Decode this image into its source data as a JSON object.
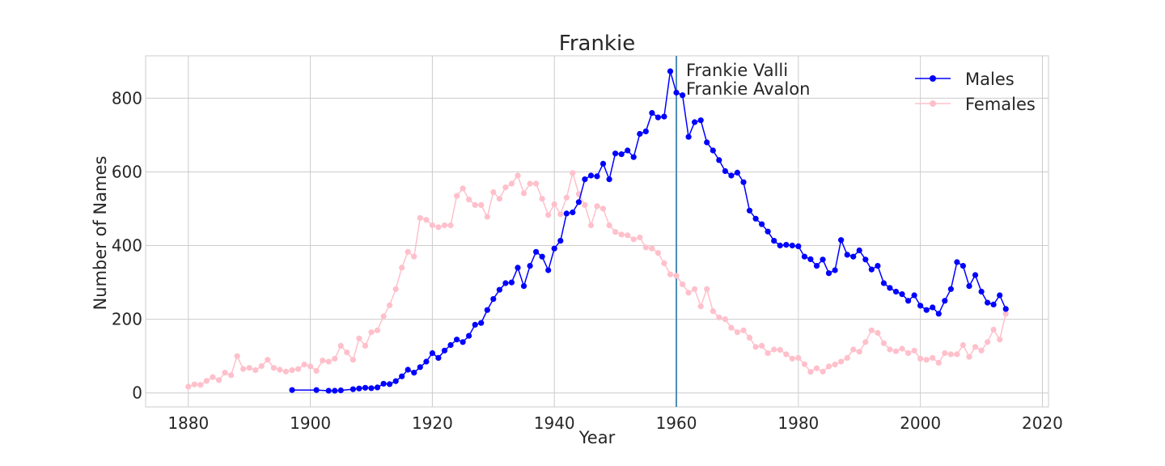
{
  "chart_data": {
    "type": "line",
    "title": "Frankie",
    "xlabel": "Year",
    "ylabel": "Number of Names",
    "xlim": [
      1873,
      2021
    ],
    "ylim": [
      -38,
      915
    ],
    "x_ticks": [
      1880,
      1900,
      1920,
      1940,
      1960,
      1980,
      2000,
      2020
    ],
    "y_ticks": [
      0,
      200,
      400,
      600,
      800
    ],
    "grid": true,
    "legend_position": "top-right",
    "vline": {
      "x": 1960,
      "color": "#4c8db8"
    },
    "annotations": [
      "Frankie Valli",
      "Frankie Avalon"
    ],
    "series": [
      {
        "name": "Males",
        "color": "#0000ff",
        "points": [
          [
            1897,
            8
          ],
          [
            1901,
            8
          ],
          [
            1903,
            6
          ],
          [
            1904,
            6
          ],
          [
            1905,
            7
          ],
          [
            1907,
            10
          ],
          [
            1908,
            12
          ],
          [
            1909,
            14
          ],
          [
            1910,
            13
          ],
          [
            1911,
            15
          ],
          [
            1912,
            25
          ],
          [
            1913,
            24
          ],
          [
            1914,
            32
          ],
          [
            1915,
            45
          ],
          [
            1916,
            63
          ],
          [
            1917,
            55
          ],
          [
            1918,
            70
          ],
          [
            1919,
            85
          ],
          [
            1920,
            108
          ],
          [
            1921,
            95
          ],
          [
            1922,
            115
          ],
          [
            1923,
            130
          ],
          [
            1924,
            145
          ],
          [
            1925,
            138
          ],
          [
            1926,
            155
          ],
          [
            1927,
            185
          ],
          [
            1928,
            190
          ],
          [
            1929,
            225
          ],
          [
            1930,
            255
          ],
          [
            1931,
            280
          ],
          [
            1932,
            298
          ],
          [
            1933,
            300
          ],
          [
            1934,
            340
          ],
          [
            1935,
            290
          ],
          [
            1936,
            345
          ],
          [
            1937,
            383
          ],
          [
            1938,
            370
          ],
          [
            1939,
            333
          ],
          [
            1940,
            392
          ],
          [
            1941,
            413
          ],
          [
            1942,
            487
          ],
          [
            1943,
            490
          ],
          [
            1944,
            518
          ],
          [
            1945,
            580
          ],
          [
            1946,
            590
          ],
          [
            1947,
            588
          ],
          [
            1948,
            622
          ],
          [
            1949,
            580
          ],
          [
            1950,
            650
          ],
          [
            1951,
            648
          ],
          [
            1952,
            658
          ],
          [
            1953,
            640
          ],
          [
            1954,
            703
          ],
          [
            1955,
            710
          ],
          [
            1956,
            760
          ],
          [
            1957,
            748
          ],
          [
            1958,
            750
          ],
          [
            1959,
            873
          ],
          [
            1960,
            815
          ],
          [
            1961,
            808
          ],
          [
            1962,
            695
          ],
          [
            1963,
            735
          ],
          [
            1964,
            740
          ],
          [
            1965,
            680
          ],
          [
            1966,
            658
          ],
          [
            1967,
            632
          ],
          [
            1968,
            602
          ],
          [
            1969,
            590
          ],
          [
            1970,
            598
          ],
          [
            1971,
            572
          ],
          [
            1972,
            495
          ],
          [
            1973,
            473
          ],
          [
            1974,
            458
          ],
          [
            1975,
            438
          ],
          [
            1976,
            413
          ],
          [
            1977,
            400
          ],
          [
            1978,
            402
          ],
          [
            1979,
            400
          ],
          [
            1980,
            398
          ],
          [
            1981,
            370
          ],
          [
            1982,
            363
          ],
          [
            1983,
            345
          ],
          [
            1984,
            362
          ],
          [
            1985,
            325
          ],
          [
            1986,
            333
          ],
          [
            1987,
            415
          ],
          [
            1988,
            375
          ],
          [
            1989,
            370
          ],
          [
            1990,
            387
          ],
          [
            1991,
            362
          ],
          [
            1992,
            335
          ],
          [
            1993,
            345
          ],
          [
            1994,
            298
          ],
          [
            1995,
            285
          ],
          [
            1996,
            275
          ],
          [
            1997,
            268
          ],
          [
            1998,
            250
          ],
          [
            1999,
            265
          ],
          [
            2000,
            237
          ],
          [
            2001,
            225
          ],
          [
            2002,
            232
          ],
          [
            2003,
            215
          ],
          [
            2004,
            250
          ],
          [
            2005,
            282
          ],
          [
            2006,
            355
          ],
          [
            2007,
            345
          ],
          [
            2008,
            290
          ],
          [
            2009,
            320
          ],
          [
            2010,
            275
          ],
          [
            2011,
            245
          ],
          [
            2012,
            240
          ],
          [
            2013,
            265
          ],
          [
            2014,
            228
          ]
        ]
      },
      {
        "name": "Females",
        "color": "#ffc0cb",
        "points": [
          [
            1880,
            17
          ],
          [
            1881,
            23
          ],
          [
            1882,
            22
          ],
          [
            1883,
            33
          ],
          [
            1884,
            43
          ],
          [
            1885,
            35
          ],
          [
            1886,
            55
          ],
          [
            1887,
            48
          ],
          [
            1888,
            100
          ],
          [
            1889,
            65
          ],
          [
            1890,
            68
          ],
          [
            1891,
            62
          ],
          [
            1892,
            73
          ],
          [
            1893,
            90
          ],
          [
            1894,
            68
          ],
          [
            1895,
            63
          ],
          [
            1896,
            58
          ],
          [
            1897,
            62
          ],
          [
            1898,
            65
          ],
          [
            1899,
            77
          ],
          [
            1900,
            72
          ],
          [
            1901,
            60
          ],
          [
            1902,
            88
          ],
          [
            1903,
            85
          ],
          [
            1904,
            93
          ],
          [
            1905,
            128
          ],
          [
            1906,
            110
          ],
          [
            1907,
            90
          ],
          [
            1908,
            148
          ],
          [
            1909,
            128
          ],
          [
            1910,
            165
          ],
          [
            1911,
            170
          ],
          [
            1912,
            208
          ],
          [
            1913,
            238
          ],
          [
            1914,
            282
          ],
          [
            1915,
            340
          ],
          [
            1916,
            383
          ],
          [
            1917,
            370
          ],
          [
            1918,
            475
          ],
          [
            1919,
            470
          ],
          [
            1920,
            455
          ],
          [
            1921,
            450
          ],
          [
            1922,
            455
          ],
          [
            1923,
            455
          ],
          [
            1924,
            535
          ],
          [
            1925,
            555
          ],
          [
            1926,
            525
          ],
          [
            1927,
            510
          ],
          [
            1928,
            510
          ],
          [
            1929,
            478
          ],
          [
            1930,
            545
          ],
          [
            1931,
            527
          ],
          [
            1932,
            558
          ],
          [
            1933,
            568
          ],
          [
            1934,
            590
          ],
          [
            1935,
            542
          ],
          [
            1936,
            568
          ],
          [
            1937,
            568
          ],
          [
            1938,
            527
          ],
          [
            1939,
            483
          ],
          [
            1940,
            512
          ],
          [
            1941,
            485
          ],
          [
            1942,
            530
          ],
          [
            1943,
            597
          ],
          [
            1944,
            540
          ],
          [
            1945,
            510
          ],
          [
            1946,
            455
          ],
          [
            1947,
            507
          ],
          [
            1948,
            500
          ],
          [
            1949,
            455
          ],
          [
            1950,
            437
          ],
          [
            1951,
            430
          ],
          [
            1952,
            428
          ],
          [
            1953,
            417
          ],
          [
            1954,
            422
          ],
          [
            1955,
            395
          ],
          [
            1956,
            392
          ],
          [
            1957,
            380
          ],
          [
            1958,
            352
          ],
          [
            1959,
            322
          ],
          [
            1960,
            318
          ],
          [
            1961,
            295
          ],
          [
            1962,
            272
          ],
          [
            1963,
            282
          ],
          [
            1964,
            235
          ],
          [
            1965,
            282
          ],
          [
            1966,
            222
          ],
          [
            1967,
            205
          ],
          [
            1968,
            200
          ],
          [
            1969,
            177
          ],
          [
            1970,
            165
          ],
          [
            1971,
            170
          ],
          [
            1972,
            150
          ],
          [
            1973,
            125
          ],
          [
            1974,
            128
          ],
          [
            1975,
            108
          ],
          [
            1976,
            118
          ],
          [
            1977,
            117
          ],
          [
            1978,
            105
          ],
          [
            1979,
            93
          ],
          [
            1980,
            95
          ],
          [
            1981,
            78
          ],
          [
            1982,
            57
          ],
          [
            1983,
            67
          ],
          [
            1984,
            58
          ],
          [
            1985,
            72
          ],
          [
            1986,
            77
          ],
          [
            1987,
            85
          ],
          [
            1988,
            95
          ],
          [
            1989,
            118
          ],
          [
            1990,
            112
          ],
          [
            1991,
            138
          ],
          [
            1992,
            170
          ],
          [
            1993,
            163
          ],
          [
            1994,
            135
          ],
          [
            1995,
            118
          ],
          [
            1996,
            113
          ],
          [
            1997,
            120
          ],
          [
            1998,
            108
          ],
          [
            1999,
            115
          ],
          [
            2000,
            93
          ],
          [
            2001,
            90
          ],
          [
            2002,
            95
          ],
          [
            2003,
            82
          ],
          [
            2004,
            108
          ],
          [
            2005,
            105
          ],
          [
            2006,
            105
          ],
          [
            2007,
            130
          ],
          [
            2008,
            98
          ],
          [
            2009,
            125
          ],
          [
            2010,
            115
          ],
          [
            2011,
            138
          ],
          [
            2012,
            172
          ],
          [
            2013,
            145
          ],
          [
            2014,
            215
          ]
        ]
      }
    ]
  }
}
